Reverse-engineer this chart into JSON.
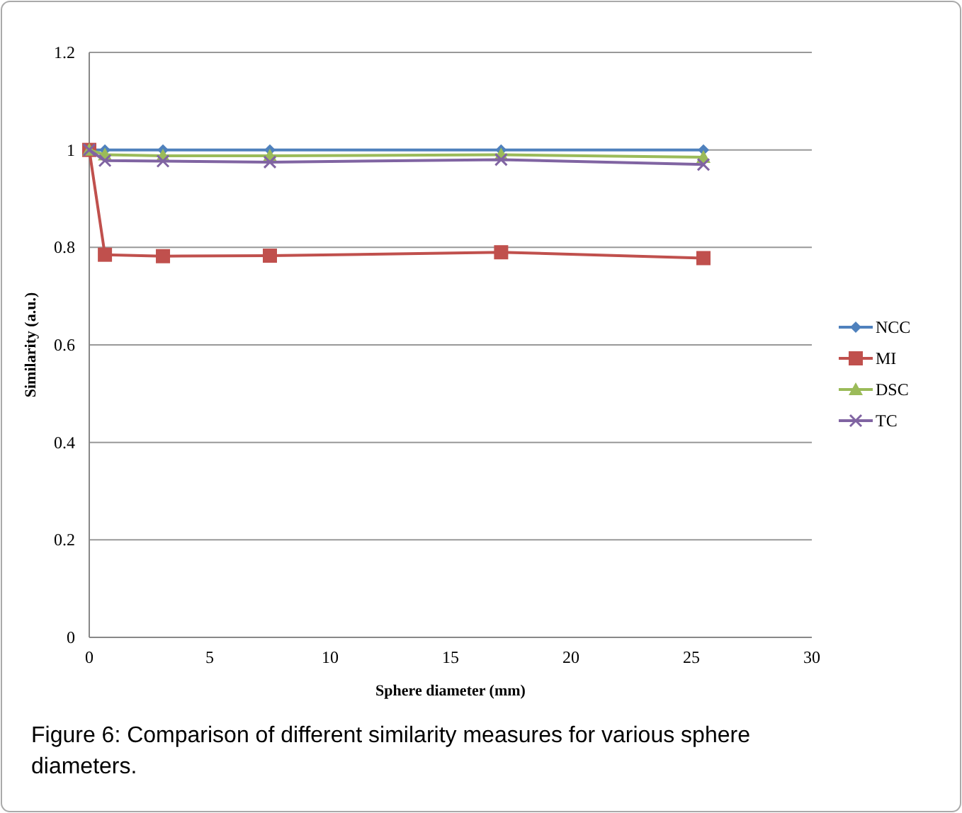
{
  "chart_data": {
    "type": "line",
    "xlabel": "Sphere diameter (mm)",
    "ylabel": "Similarity (a.u.)",
    "x": [
      0,
      0.65,
      3.06,
      7.5,
      17.1,
      25.5
    ],
    "series": [
      {
        "name": "NCC",
        "color": "#4f81bd",
        "marker": "diamond",
        "values": [
          1,
          1,
          1,
          1,
          1,
          1
        ]
      },
      {
        "name": "MI",
        "color": "#c0504d",
        "marker": "square",
        "values": [
          1,
          0.785,
          0.782,
          0.783,
          0.79,
          0.778
        ]
      },
      {
        "name": "DSC",
        "color": "#9bbb59",
        "marker": "triangle",
        "values": [
          1,
          0.99,
          0.988,
          0.988,
          0.99,
          0.985
        ]
      },
      {
        "name": "TC",
        "color": "#8064a2",
        "marker": "cross",
        "values": [
          1,
          0.978,
          0.977,
          0.975,
          0.98,
          0.97
        ]
      }
    ],
    "xlim": [
      0,
      30
    ],
    "xticks": [
      0,
      5,
      10,
      15,
      20,
      25,
      30
    ],
    "ylim": [
      0,
      1.2
    ],
    "yticks": [
      0,
      0.2,
      0.4,
      0.6,
      0.8,
      1,
      1.2
    ],
    "grid": "y",
    "legend": "right",
    "annotations": [
      "Figure 6: Comparison of different similarity measures for various sphere diameters."
    ]
  }
}
